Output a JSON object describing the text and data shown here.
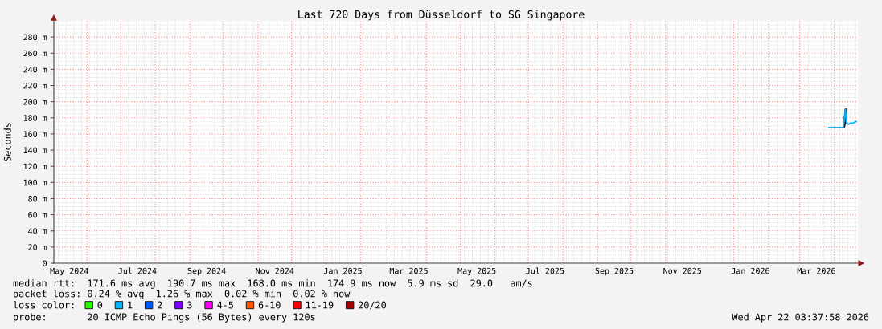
{
  "chart_data": {
    "type": "line",
    "title": "Last 720 Days from Düsseldorf to SG Singapore",
    "ylabel": "Seconds",
    "legend_title": "loss color:",
    "x": [
      "2026-03-27",
      "2026-04-09",
      "2026-04-10",
      "2026-04-11",
      "2026-04-12",
      "2026-04-13",
      "2026-04-14",
      "2026-04-15",
      "2026-04-16",
      "2026-04-17",
      "2026-04-18",
      "2026-04-19",
      "2026-04-20",
      "2026-04-21"
    ],
    "series": [
      {
        "name": "0",
        "color": "#26ff00",
        "values": [
          null,
          null,
          null,
          null,
          null,
          null,
          null,
          null,
          null,
          null,
          null,
          null,
          null,
          null
        ]
      },
      {
        "name": "1",
        "color": "#00b8ff",
        "values": [
          168,
          168,
          177,
          191,
          174,
          173,
          172,
          173,
          174,
          173,
          174,
          174,
          176,
          175
        ],
        "lower": [
          null,
          null,
          168,
          174,
          174,
          null,
          null,
          null,
          null,
          null,
          null,
          null,
          null,
          null
        ],
        "upper": [
          null,
          null,
          180,
          191,
          191,
          null,
          null,
          null,
          null,
          null,
          null,
          null,
          null,
          null
        ]
      },
      {
        "name": "2",
        "color": "#0059ff",
        "values": [
          null,
          null,
          null,
          null,
          null,
          null,
          null,
          null,
          null,
          null,
          null,
          null,
          null,
          null
        ]
      },
      {
        "name": "3",
        "color": "#7e00ff",
        "values": [
          null,
          null,
          null,
          null,
          null,
          null,
          null,
          null,
          null,
          null,
          null,
          null,
          null,
          null
        ]
      },
      {
        "name": "4-5",
        "color": "#ff00ff",
        "values": [
          null,
          null,
          null,
          null,
          null,
          null,
          null,
          null,
          null,
          null,
          null,
          null,
          null,
          null
        ]
      },
      {
        "name": "6-10",
        "color": "#ff5500",
        "values": [
          null,
          null,
          null,
          null,
          null,
          null,
          null,
          null,
          null,
          null,
          null,
          null,
          null,
          null
        ]
      },
      {
        "name": "11-19",
        "color": "#ff0000",
        "values": [
          null,
          null,
          null,
          null,
          null,
          null,
          null,
          null,
          null,
          null,
          null,
          null,
          null,
          null
        ]
      },
      {
        "name": "20/20",
        "color": "#a10000",
        "values": [
          null,
          null,
          null,
          null,
          null,
          null,
          null,
          null,
          null,
          null,
          null,
          null,
          null,
          null
        ]
      }
    ],
    "xlim": [
      "2024-05-02T03:37",
      "2026-04-22T03:37"
    ],
    "xticks": [
      {
        "value": "2024-05-16",
        "label": "May 2024"
      },
      {
        "value": "2024-07-16",
        "label": "Jul 2024"
      },
      {
        "value": "2024-09-16",
        "label": "Sep 2024"
      },
      {
        "value": "2024-11-16",
        "label": "Nov 2024"
      },
      {
        "value": "2025-01-16",
        "label": "Jan 2025"
      },
      {
        "value": "2025-03-16",
        "label": "Mar 2025"
      },
      {
        "value": "2025-05-16",
        "label": "May 2025"
      },
      {
        "value": "2025-07-16",
        "label": "Jul 2025"
      },
      {
        "value": "2025-09-16",
        "label": "Sep 2025"
      },
      {
        "value": "2025-11-16",
        "label": "Nov 2025"
      },
      {
        "value": "2026-01-16",
        "label": "Jan 2026"
      },
      {
        "value": "2026-03-16",
        "label": "Mar 2026"
      }
    ],
    "ylim": [
      0,
      300
    ],
    "yticks": [
      0,
      {
        "value": 20,
        "label": "20 m"
      },
      {
        "value": 40,
        "label": "40 m"
      },
      {
        "value": 60,
        "label": "60 m"
      },
      {
        "value": 80,
        "label": "80 m"
      },
      {
        "value": 100,
        "label": "100 m"
      },
      {
        "value": 120,
        "label": "120 m"
      },
      {
        "value": 140,
        "label": "140 m"
      },
      {
        "value": 160,
        "label": "160 m"
      },
      {
        "value": 180,
        "label": "180 m"
      },
      {
        "value": 200,
        "label": "200 m"
      },
      {
        "value": 220,
        "label": "220 m"
      },
      {
        "value": 240,
        "label": "240 m"
      },
      {
        "value": 260,
        "label": "260 m"
      },
      {
        "value": 280,
        "label": "280 m"
      }
    ],
    "grid": true,
    "legend": "bottom",
    "annotations": [
      "median rtt:  171.6 ms avg  190.7 ms max  168.0 ms min  174.9 ms now  5.9 ms sd  29.0   am/s",
      "packet loss: 0.24 % avg  1.26 % max  0.02 % min  0.02 % now",
      "probe:       20 ICMP Echo Pings (56 Bytes) every 120s",
      "Wed Apr 22 03:37:58 2026"
    ]
  }
}
